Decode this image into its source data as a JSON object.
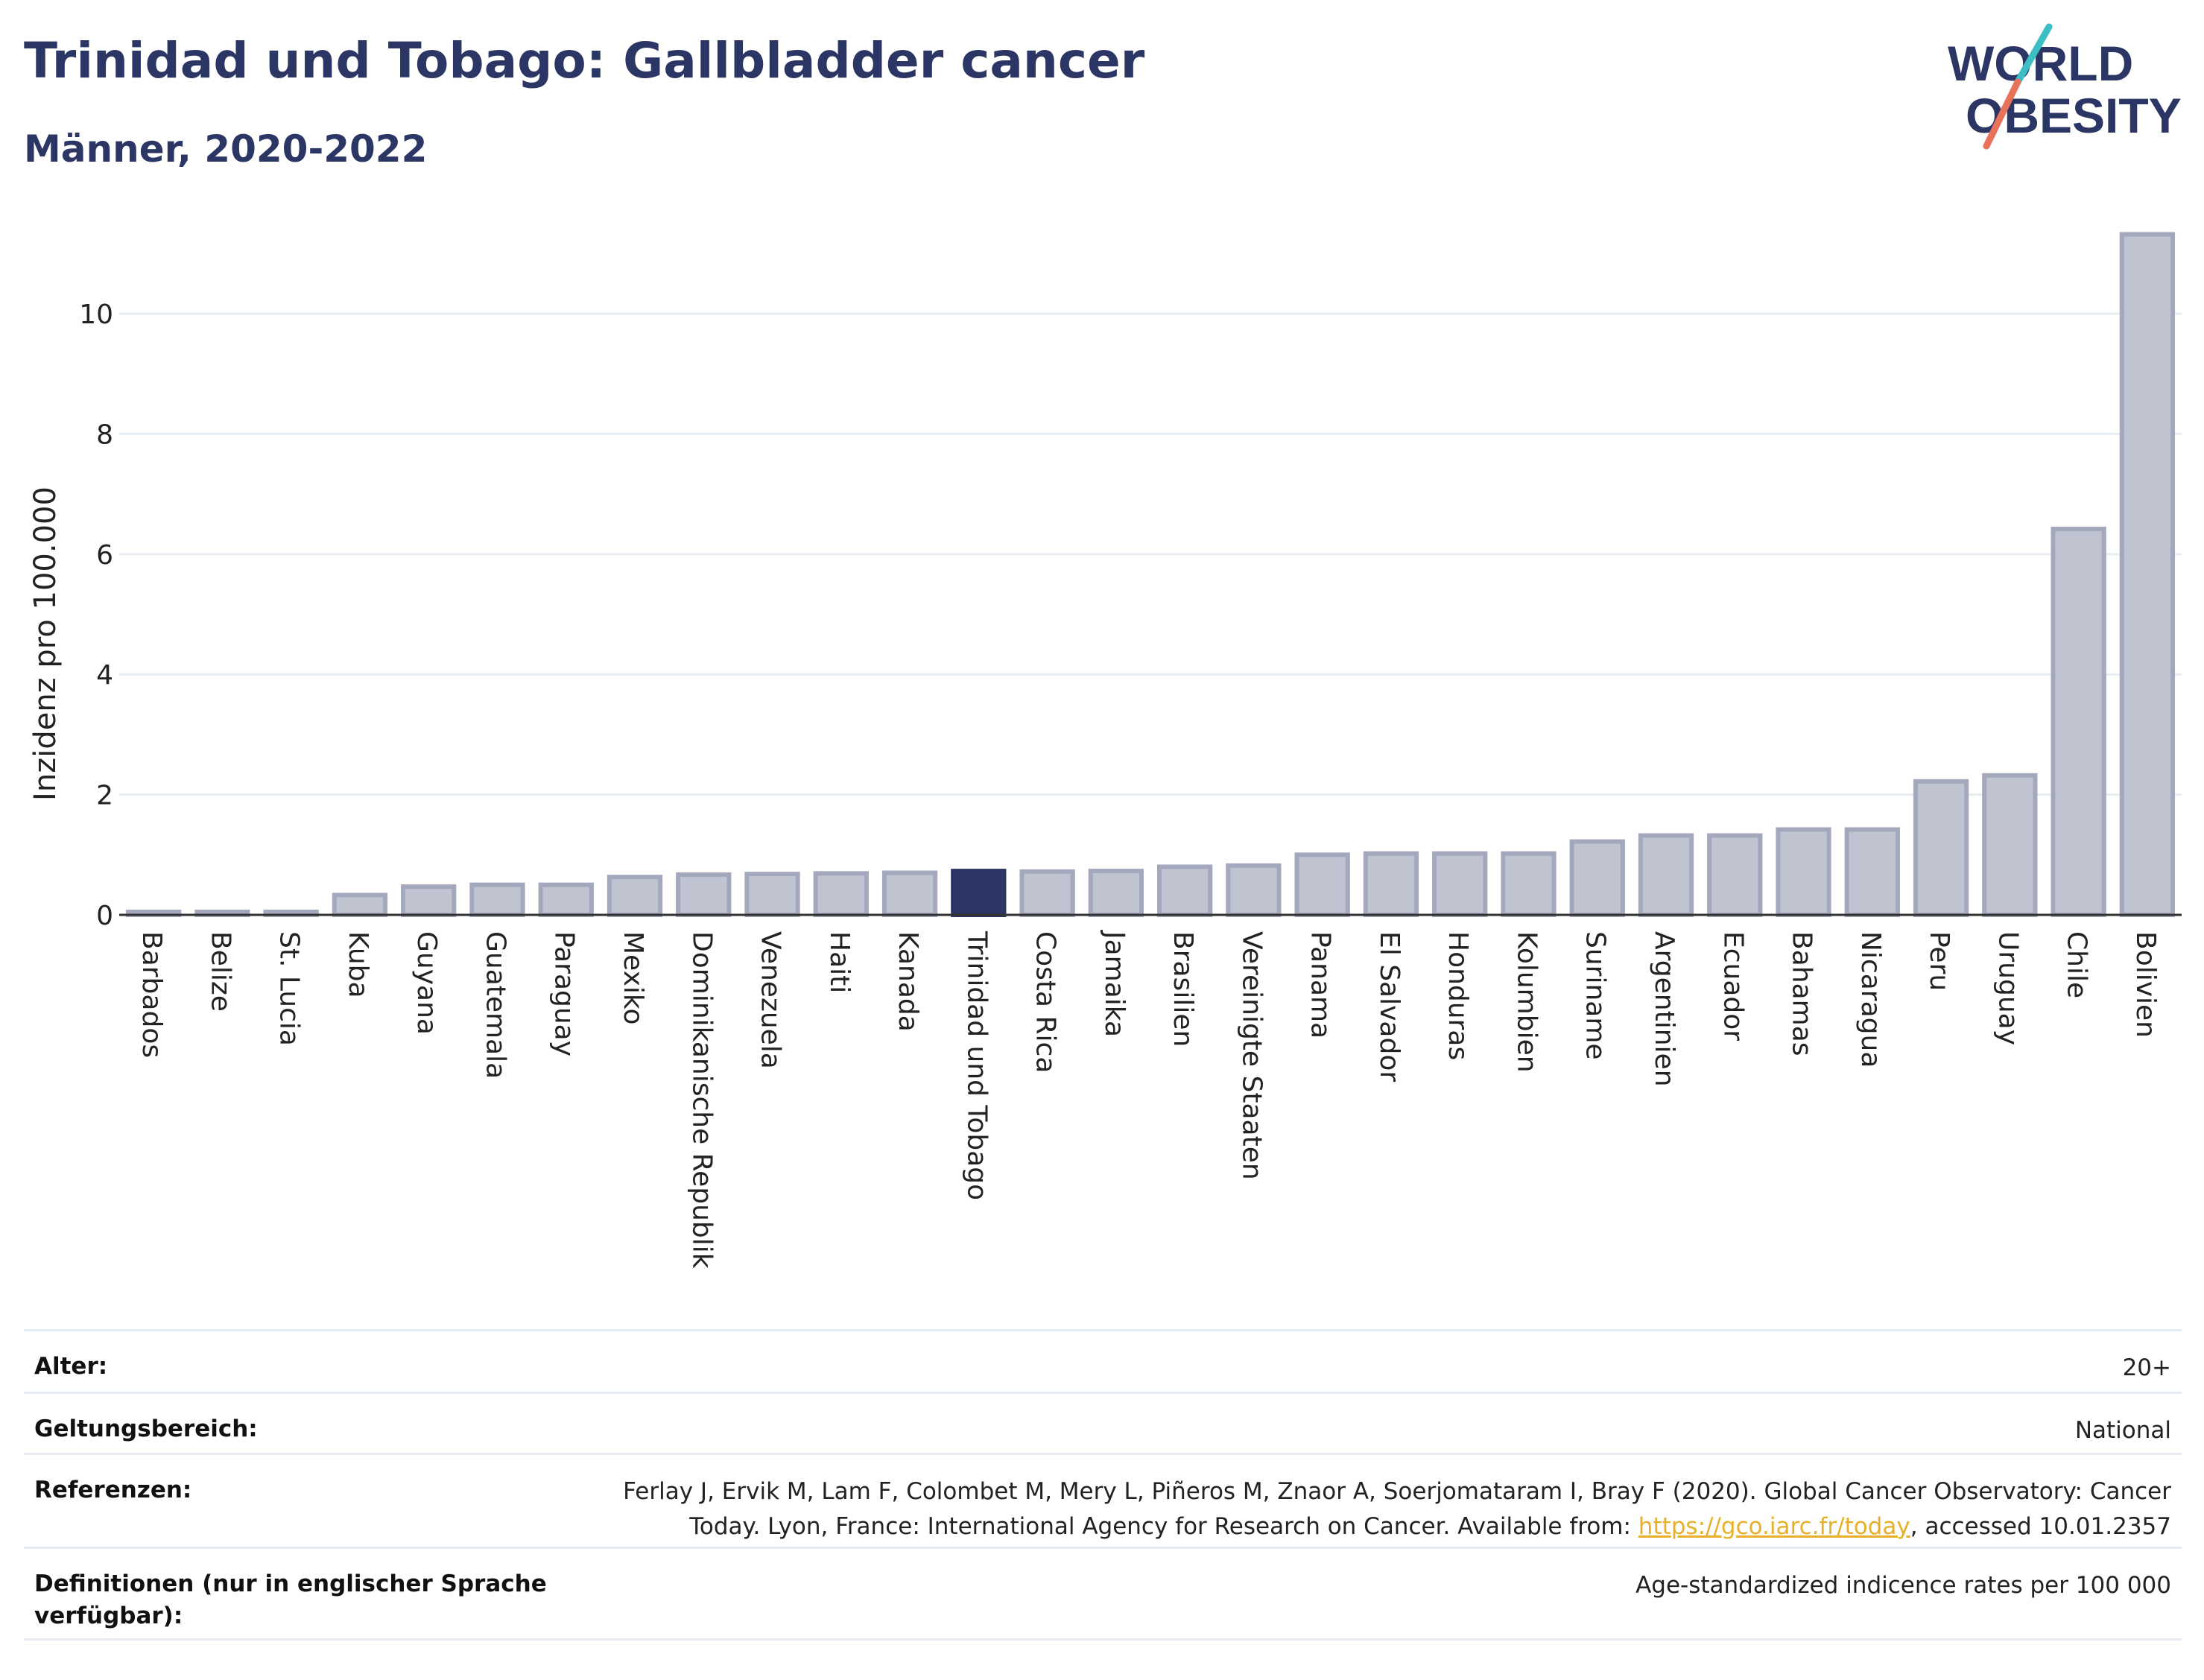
{
  "header": {
    "title": "Trinidad und Tobago: Gallbladder cancer",
    "subtitle": "Männer, 2020-2022"
  },
  "logo": {
    "line1": "WORLD",
    "line2": "OBESITY"
  },
  "colors": {
    "title": "#2b3664",
    "bar": "#c0c3d0",
    "bar_stroke": "#a3a8bd",
    "highlight": "#2b3664",
    "grid": "#e6ecf2",
    "logo_teal": "#3bbfc4",
    "logo_coral": "#e8715a",
    "link": "#e8b02a"
  },
  "chart_data": {
    "type": "bar",
    "ylabel": "Inzidenz pro 100.000",
    "ylim": [
      0,
      11.5
    ],
    "yticks": [
      0,
      2,
      4,
      6,
      8,
      10
    ],
    "grid": true,
    "highlight": "Trinidad und Tobago",
    "categories": [
      "Barbados",
      "Belize",
      "St. Lucia",
      "Kuba",
      "Guyana",
      "Guatemala",
      "Paraguay",
      "Mexiko",
      "Dominikanische Republik",
      "Venezuela",
      "Haiti",
      "Kanada",
      "Trinidad und Tobago",
      "Costa Rica",
      "Jamaika",
      "Brasilien",
      "Vereinigte Staaten",
      "Panama",
      "El Salvador",
      "Honduras",
      "Kolumbien",
      "Suriname",
      "Argentinien",
      "Ecuador",
      "Bahamas",
      "Nicaragua",
      "Peru",
      "Uruguay",
      "Chile",
      "Bolivien"
    ],
    "values": [
      0.05,
      0.05,
      0.05,
      0.33,
      0.47,
      0.5,
      0.5,
      0.63,
      0.67,
      0.68,
      0.69,
      0.7,
      0.73,
      0.72,
      0.73,
      0.8,
      0.82,
      1.0,
      1.02,
      1.02,
      1.02,
      1.22,
      1.32,
      1.32,
      1.42,
      1.42,
      2.22,
      2.32,
      6.42,
      11.32
    ]
  },
  "meta": [
    {
      "label": "Alter:",
      "value": "20+"
    },
    {
      "label": "Geltungsbereich:",
      "value": "National"
    },
    {
      "label": "Referenzen:",
      "value_line1": "Ferlay J, Ervik M, Lam F, Colombet M, Mery L, Piñeros M, Znaor A, Soerjomataram I, Bray F (2020). Global Cancer Observatory: Cancer",
      "value_line2_pre": "Today. Lyon, France: International Agency for Research on Cancer. Available from: ",
      "link": "https://gco.iarc.fr/today",
      "value_line2_post": ", accessed 10.01.2357"
    },
    {
      "label_line1": "Definitionen (nur in englischer Sprache",
      "label_line2": "verfügbar):",
      "value": "Age-standardized indicence rates per 100 000"
    }
  ]
}
